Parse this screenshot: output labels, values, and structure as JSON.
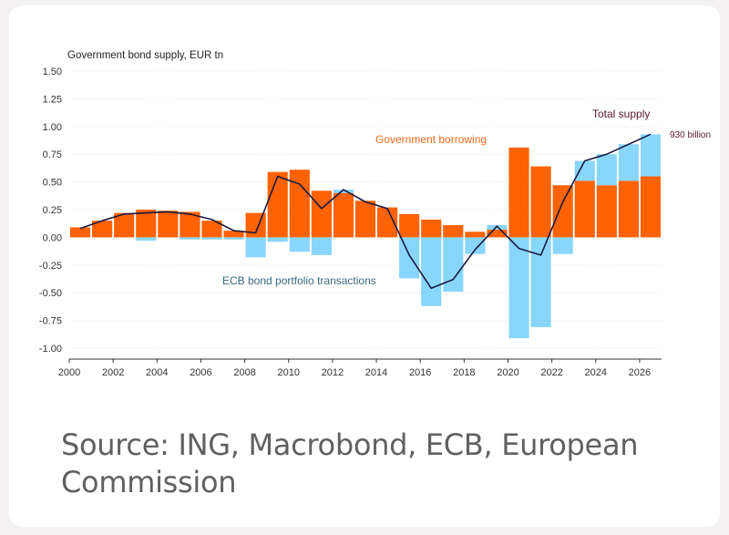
{
  "chart_data": {
    "type": "bar",
    "title": "Government bond supply, EUR tn",
    "source": "Source: ING, Macrobond, ECB, European Commission",
    "years": [
      2000,
      2001,
      2002,
      2003,
      2004,
      2005,
      2006,
      2007,
      2008,
      2009,
      2010,
      2011,
      2012,
      2013,
      2014,
      2015,
      2016,
      2017,
      2018,
      2019,
      2020,
      2021,
      2022,
      2023,
      2024,
      2025,
      2026
    ],
    "xticks": [
      "2000",
      "2002",
      "2004",
      "2006",
      "2008",
      "2010",
      "2012",
      "2014",
      "2016",
      "2018",
      "2020",
      "2022",
      "2024",
      "2026"
    ],
    "yticks": [
      "1.50",
      "1.25",
      "1.00",
      "0.75",
      "0.50",
      "0.25",
      "0.00",
      "-0.25",
      "-0.50",
      "-0.75",
      "-1.00"
    ],
    "ylim": [
      -1.0,
      1.5
    ],
    "series": [
      {
        "name": "Government borrowing",
        "color": "#ff6200",
        "values": [
          0.09,
          0.15,
          0.22,
          0.25,
          0.24,
          0.23,
          0.15,
          0.06,
          0.22,
          0.59,
          0.61,
          0.42,
          0.4,
          0.33,
          0.27,
          0.21,
          0.16,
          0.11,
          0.05,
          0.07,
          0.81,
          0.64,
          0.47,
          0.51,
          0.47,
          0.51,
          0.55
        ]
      },
      {
        "name": "ECB bond portfolio transactions",
        "color": "#89d6fd",
        "values": [
          0.0,
          0.0,
          0.0,
          -0.03,
          0.0,
          -0.02,
          -0.02,
          -0.02,
          -0.18,
          -0.04,
          -0.13,
          -0.16,
          0.03,
          0.0,
          0.0,
          -0.37,
          -0.62,
          -0.49,
          -0.15,
          0.04,
          -0.91,
          -0.81,
          -0.15,
          0.18,
          0.28,
          0.33,
          0.38
        ]
      },
      {
        "name": "Total supply",
        "color": "#1a1a40",
        "values": [
          0.08,
          0.15,
          0.21,
          0.22,
          0.23,
          0.21,
          0.16,
          0.06,
          0.04,
          0.55,
          0.48,
          0.26,
          0.43,
          0.32,
          0.26,
          -0.16,
          -0.46,
          -0.38,
          -0.11,
          0.1,
          -0.1,
          -0.16,
          0.32,
          0.69,
          0.75,
          0.84,
          0.93
        ]
      }
    ],
    "annotations": {
      "borrowing": "Government borrowing",
      "ecb": "ECB bond portfolio transactions",
      "total": "Total supply",
      "end_value": "930 billion"
    }
  }
}
